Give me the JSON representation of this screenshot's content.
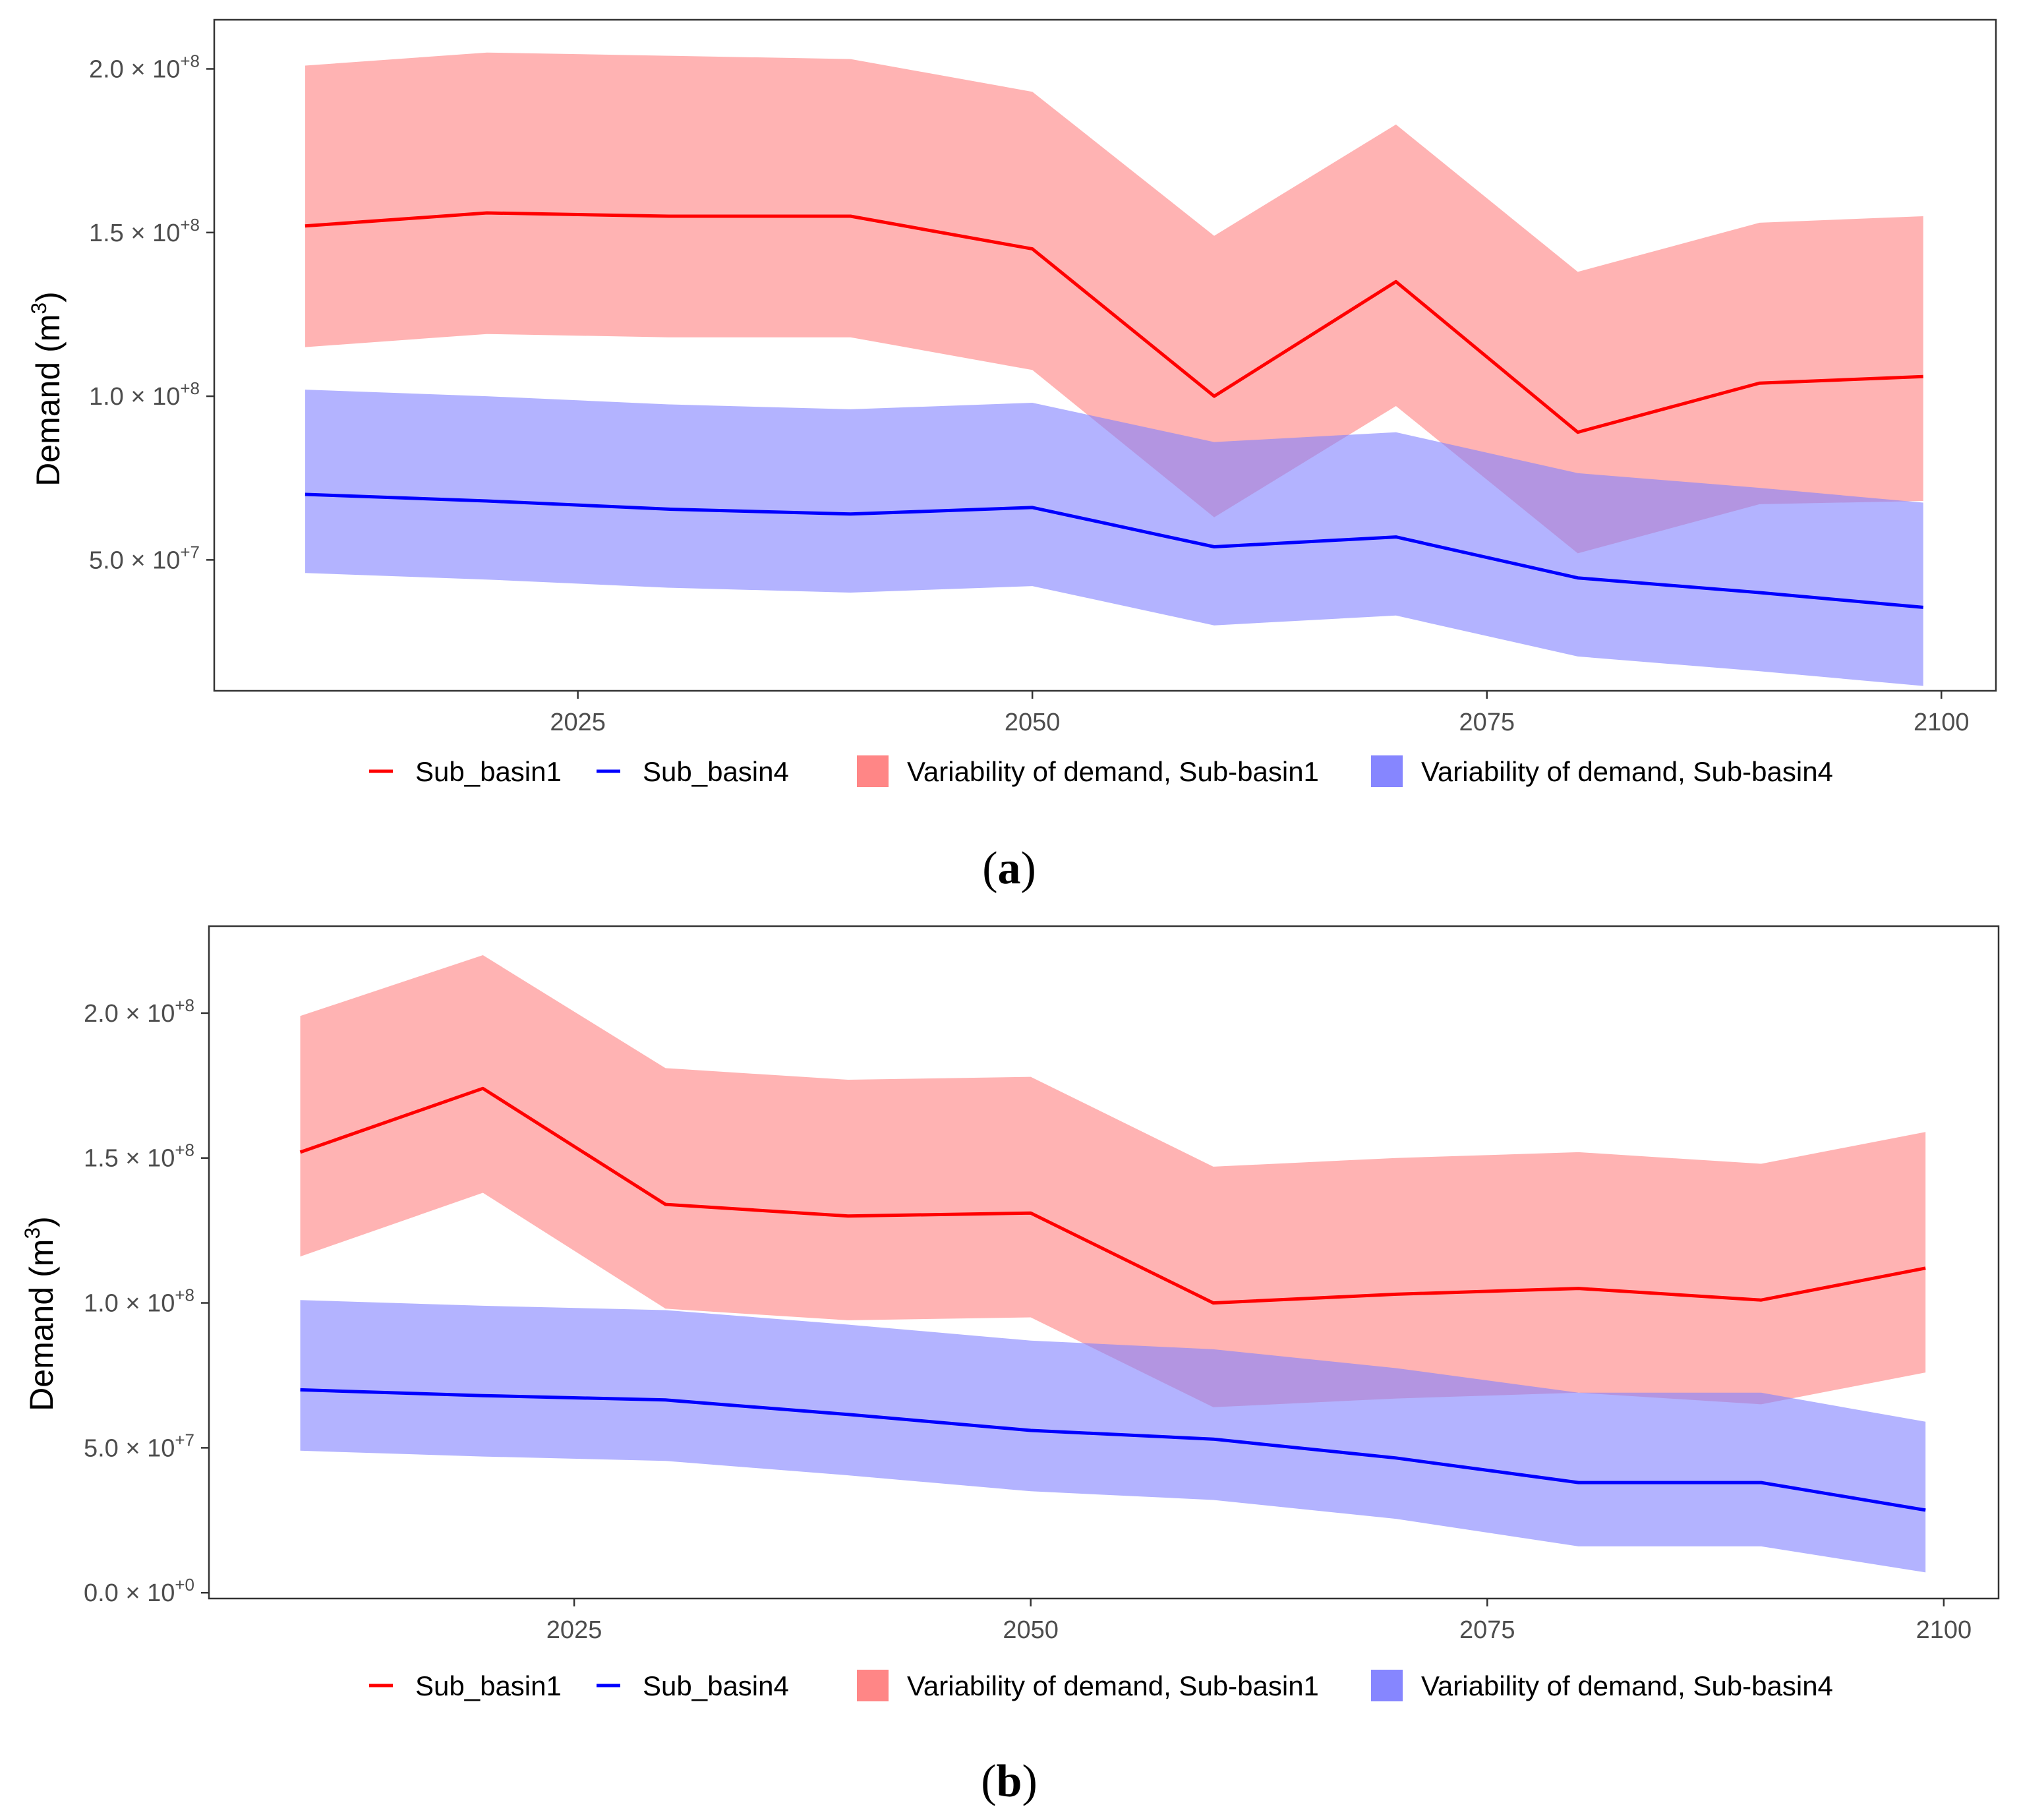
{
  "charts": [
    {
      "panel_label": "a",
      "ylabel_prefix": "Demand (m",
      "ylabel_sup": "3",
      "ylabel_suffix": ")"
    },
    {
      "panel_label": "b",
      "ylabel_prefix": "Demand (m",
      "ylabel_sup": "3",
      "ylabel_suffix": ")"
    }
  ],
  "legend": {
    "line1": "Sub_basin1",
    "line2": "Sub_basin4",
    "band1": "Variability of demand, Sub-basin1",
    "band2": "Variability of demand, Sub-basin4"
  },
  "colors": {
    "line1": "#ff0000",
    "line2": "#0000ff",
    "band1": "#ff8080",
    "band2": "#8080ff",
    "band_alpha": "0.6",
    "legend_alpha": "0.95"
  },
  "chart_data": [
    {
      "type": "line",
      "panel": "a",
      "title": "",
      "xlabel": "",
      "ylabel": "Demand (m3)",
      "x": [
        2010,
        2020,
        2030,
        2040,
        2050,
        2060,
        2070,
        2080,
        2090,
        2099
      ],
      "xlim": [
        2005,
        2103
      ],
      "ylim": [
        10000000.0,
        215000000.0
      ],
      "x_ticks": [
        {
          "value": 2025,
          "label": "2025"
        },
        {
          "value": 2050,
          "label": "2050"
        },
        {
          "value": 2075,
          "label": "2075"
        },
        {
          "value": 2100,
          "label": "2100"
        }
      ],
      "y_ticks": [
        {
          "value": 50000000.0,
          "mantissa": "5.0",
          "exp": "+7"
        },
        {
          "value": 100000000.0,
          "mantissa": "1.0",
          "exp": "+8"
        },
        {
          "value": 150000000.0,
          "mantissa": "1.5",
          "exp": "+8"
        },
        {
          "value": 200000000.0,
          "mantissa": "2.0",
          "exp": "+8"
        }
      ],
      "series": [
        {
          "name": "Sub_basin1",
          "values": [
            152000000.0,
            156000000.0,
            155000000.0,
            155000000.0,
            145000000.0,
            100000000.0,
            135000000.0,
            89000000.0,
            104000000.0,
            106000000.0
          ],
          "lower": [
            115000000.0,
            119000000.0,
            118000000.0,
            118000000.0,
            108000000.0,
            63000000.0,
            97000000.0,
            52000000.0,
            67000000.0,
            68000000.0
          ],
          "upper": [
            201000000.0,
            205000000.0,
            204000000.0,
            203000000.0,
            193000000.0,
            149000000.0,
            183000000.0,
            138000000.0,
            153000000.0,
            155000000.0
          ]
        },
        {
          "name": "Sub_basin4",
          "values": [
            70000000.0,
            68000000.0,
            65500000.0,
            64000000.0,
            66000000.0,
            54000000.0,
            57000000.0,
            44500000.0,
            40000000.0,
            35500000.0
          ],
          "lower": [
            46000000.0,
            44000000.0,
            41500000.0,
            40000000.0,
            42000000.0,
            30000000.0,
            33000000.0,
            20500000.0,
            16000000.0,
            11500000.0
          ],
          "upper": [
            102000000.0,
            100000000.0,
            97500000.0,
            96000000.0,
            98000000.0,
            86000000.0,
            89000000.0,
            76500000.0,
            72000000.0,
            67500000.0
          ]
        }
      ]
    },
    {
      "type": "line",
      "panel": "b",
      "title": "",
      "xlabel": "",
      "ylabel": "Demand (m3)",
      "x": [
        2010,
        2020,
        2030,
        2040,
        2050,
        2060,
        2070,
        2080,
        2090,
        2099
      ],
      "xlim": [
        2005,
        2103
      ],
      "ylim": [
        -2000000.0,
        230000000.0
      ],
      "x_ticks": [
        {
          "value": 2025,
          "label": "2025"
        },
        {
          "value": 2050,
          "label": "2050"
        },
        {
          "value": 2075,
          "label": "2075"
        },
        {
          "value": 2100,
          "label": "2100"
        }
      ],
      "y_ticks": [
        {
          "value": 0,
          "mantissa": "0.0",
          "exp": "+0"
        },
        {
          "value": 50000000.0,
          "mantissa": "5.0",
          "exp": "+7"
        },
        {
          "value": 100000000.0,
          "mantissa": "1.0",
          "exp": "+8"
        },
        {
          "value": 150000000.0,
          "mantissa": "1.5",
          "exp": "+8"
        },
        {
          "value": 200000000.0,
          "mantissa": "2.0",
          "exp": "+8"
        }
      ],
      "series": [
        {
          "name": "Sub_basin1",
          "values": [
            152000000.0,
            174000000.0,
            134000000.0,
            130000000.0,
            131000000.0,
            100000000.0,
            103000000.0,
            105000000.0,
            101000000.0,
            112000000.0
          ],
          "lower": [
            116000000.0,
            138000000.0,
            98000000.0,
            94000000.0,
            95000000.0,
            64000000.0,
            67000000.0,
            69000000.0,
            65000000.0,
            76000000.0
          ],
          "upper": [
            199000000.0,
            220000000.0,
            181000000.0,
            177000000.0,
            178000000.0,
            147000000.0,
            150000000.0,
            152000000.0,
            148000000.0,
            159000000.0
          ]
        },
        {
          "name": "Sub_basin4",
          "values": [
            70000000.0,
            68000000.0,
            66500000.0,
            61500000.0,
            56000000.0,
            53000000.0,
            46500000.0,
            38000000.0,
            38000000.0,
            28500000.0
          ],
          "lower": [
            49000000.0,
            47000000.0,
            45500000.0,
            40500000.0,
            35000000.0,
            32000000.0,
            25500000.0,
            16000000.0,
            16000000.0,
            7000000.0
          ],
          "upper": [
            101000000.0,
            99000000.0,
            97500000.0,
            92500000.0,
            87000000.0,
            84000000.0,
            77500000.0,
            69000000.0,
            69000000.0,
            59000000.0
          ]
        }
      ]
    }
  ]
}
